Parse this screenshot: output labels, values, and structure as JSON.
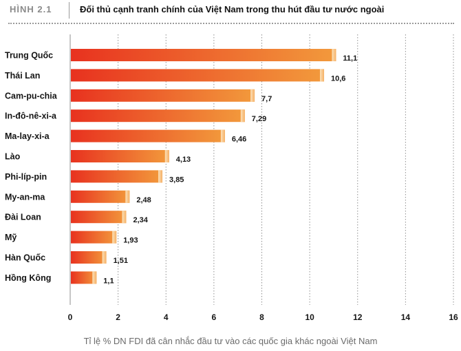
{
  "header": {
    "figure_label": "HÌNH 2.1",
    "title": "Đối thủ cạnh tranh chính của Việt Nam trong thu hút đầu tư nước ngoài"
  },
  "colors": {
    "bar_start": "#e8321f",
    "bar_end": "#f29a3c",
    "grid": "#8e8e8e"
  },
  "chart_data": {
    "type": "bar",
    "orientation": "horizontal",
    "title": "Đối thủ cạnh tranh chính của Việt Nam trong thu hút đầu tư nước ngoài",
    "xlabel": "Tỉ lệ % DN FDI đã cân nhắc đầu tư vào các quốc gia khác ngoài Việt Nam",
    "ylabel": "",
    "xlim": [
      0,
      16
    ],
    "xticks": [
      0,
      2,
      4,
      6,
      8,
      10,
      12,
      14,
      16
    ],
    "grid": true,
    "categories": [
      "Trung Quốc",
      "Thái Lan",
      "Cam-pu-chia",
      "In-đô-nê-xi-a",
      "Ma-lay-xi-a",
      "Lào",
      "Phi-líp-pin",
      "My-an-ma",
      "Đài Loan",
      "Mỹ",
      "Hàn Quốc",
      "Hồng Kông"
    ],
    "values": [
      11.1,
      10.6,
      7.7,
      7.29,
      6.46,
      4.13,
      3.85,
      2.48,
      2.34,
      1.93,
      1.51,
      1.1
    ],
    "value_labels": [
      "11,1",
      "10,6",
      "7,7",
      "7,29",
      "6,46",
      "4,13",
      "3,85",
      "2,48",
      "2,34",
      "1,93",
      "1,51",
      "1,1"
    ],
    "tick_labels": [
      "0",
      "2",
      "4",
      "6",
      "8",
      "10",
      "12",
      "14",
      "16"
    ]
  }
}
